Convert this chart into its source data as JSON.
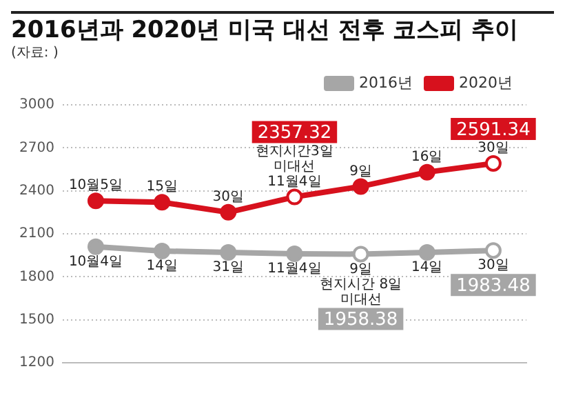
{
  "chart_data": {
    "type": "line",
    "title": "2016년과 2020년 미국 대선 전후 코스피 추이",
    "subtitle": "(자료: )",
    "categories": [
      null,
      null,
      null,
      null,
      null,
      null,
      null
    ],
    "series": [
      {
        "name": "2016년",
        "color": "#a6a6a6",
        "values": [
          2010,
          1980,
          1970,
          1960,
          1958.38,
          1970,
          1983.48
        ],
        "value_labels": [
          null,
          null,
          null,
          null,
          "1958.38",
          null,
          "1983.48"
        ]
      },
      {
        "name": "2020년",
        "color": "#d7111d",
        "values": [
          2330,
          2320,
          2250,
          2357.32,
          2430,
          2530,
          2591.34
        ],
        "value_labels": [
          null,
          null,
          null,
          "2357.32",
          null,
          null,
          "2591.34"
        ]
      }
    ],
    "annotations": [
      {
        "text": "10월4일",
        "y": 2010
      },
      {
        "text": "14일",
        "y": 1980
      },
      {
        "text": "31일",
        "y": 1970
      },
      {
        "text": "11월4일",
        "y": 1960
      },
      {
        "text": "9일\n현지시간 8일\n미대선",
        "y": 1958.38
      },
      {
        "text": "14일",
        "y": 1970
      },
      {
        "text": "30일",
        "y": 1983.48
      },
      {
        "text": "10월5일",
        "y": 2330
      },
      {
        "text": "15일",
        "y": 2320
      },
      {
        "text": "30일",
        "y": 2250
      },
      {
        "text": "11월4일\n미대선\n현지시간3일",
        "y": 2357.32
      },
      {
        "text": "9일",
        "y": 2430
      },
      {
        "text": "16일",
        "y": 2530
      },
      {
        "text": "30일",
        "y": 2591.34
      }
    ],
    "ylim": [
      1200,
      3000
    ],
    "yticks": [
      1200,
      1500,
      1800,
      2100,
      2400,
      2700,
      3000
    ],
    "grid": "y",
    "legend": "top right",
    "marker": "circle",
    "line_style": "solid"
  }
}
